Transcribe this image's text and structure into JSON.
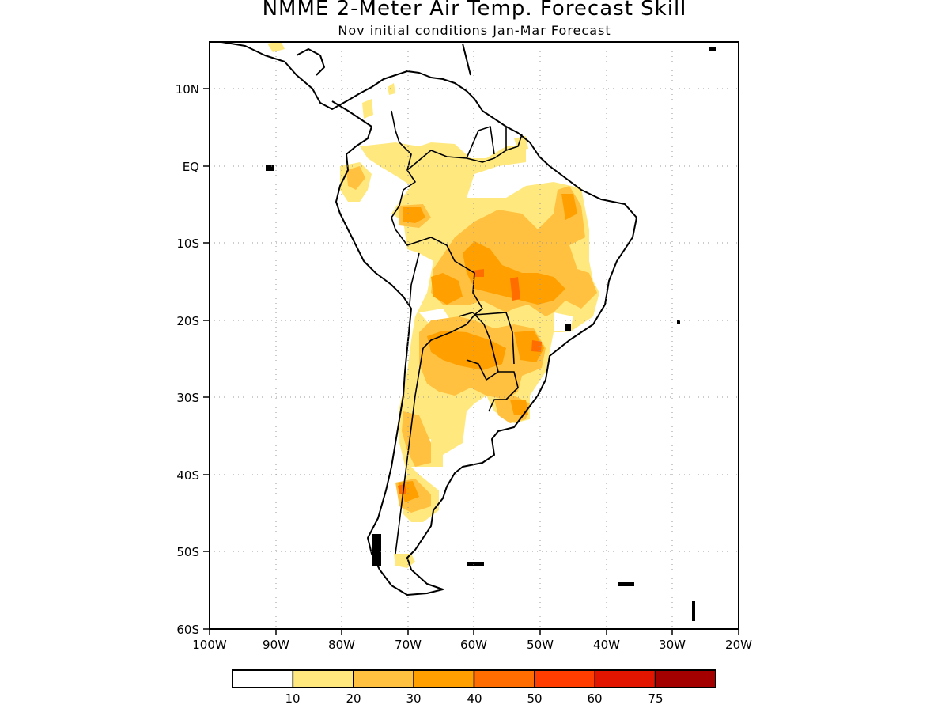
{
  "title": "NMME 2-Meter Air Temp. Forecast Skill",
  "subtitle": "Nov initial conditions   Jan-Mar Forecast",
  "map": {
    "lon_range": [
      -100,
      -20
    ],
    "lat_range": [
      -60,
      16
    ],
    "grid": "dotted",
    "x_ticks": [
      "100W",
      "90W",
      "80W",
      "70W",
      "60W",
      "50W",
      "40W",
      "30W",
      "20W"
    ],
    "y_ticks": [
      "10N",
      "EQ",
      "10S",
      "20S",
      "30S",
      "40S",
      "50S",
      "60S"
    ],
    "colors": {
      "c10": "#ffe97f",
      "c20": "#ffc13f",
      "c30": "#ffa000",
      "c40": "#ff6d00",
      "c50": "#ff3d00",
      "coast": "#000000"
    }
  },
  "colorbar": {
    "levels": [
      "10",
      "20",
      "30",
      "40",
      "50",
      "60",
      "75"
    ],
    "colors": [
      "#ffffff",
      "#ffe97f",
      "#ffc13f",
      "#ffa000",
      "#ff6d00",
      "#ff3d00",
      "#e11500",
      "#a50000"
    ]
  }
}
